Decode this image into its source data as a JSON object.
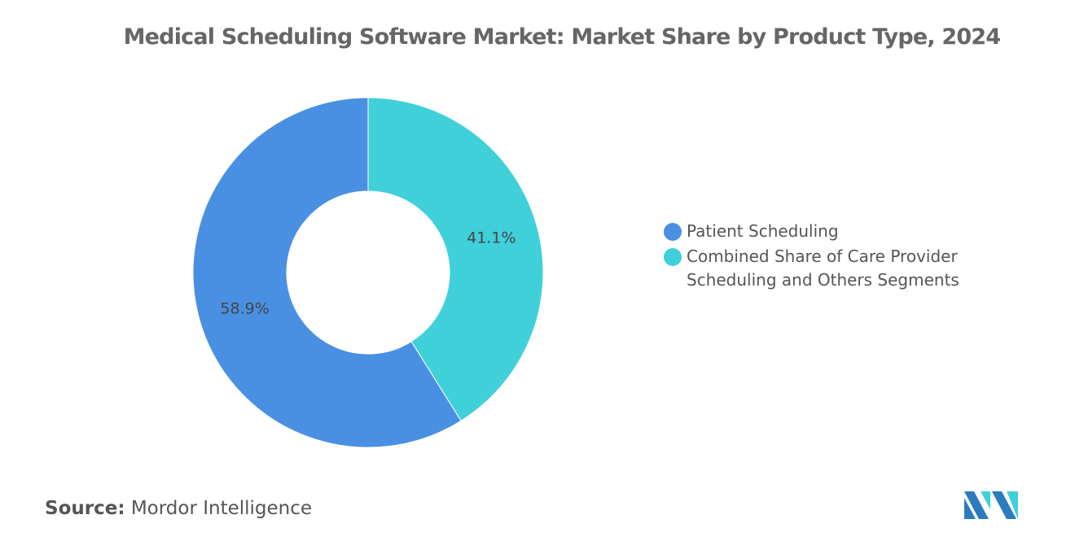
{
  "chart_data": {
    "type": "pie",
    "donut": true,
    "title": "Medical Scheduling Software Market: Market Share by Product Type, 2024",
    "slices": [
      {
        "label": "Combined Share of Care Provider Scheduling and Others Segments",
        "value": 41.1,
        "display": "41.1%",
        "color": "#3FD0DA"
      },
      {
        "label": "Patient Scheduling",
        "value": 58.9,
        "display": "58.9%",
        "color": "#4A90E2"
      }
    ],
    "legend_order": [
      1,
      0
    ],
    "legend_position": "right"
  },
  "source": {
    "label": "Source:",
    "value": "Mordor Intelligence"
  },
  "logo": {
    "text": "Mordor Intelligence",
    "colors": [
      "#2B7BBE",
      "#3FD0DA"
    ]
  }
}
